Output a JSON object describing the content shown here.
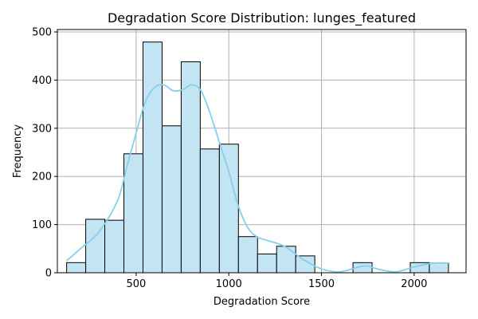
{
  "chart_data": {
    "type": "bar",
    "title": "Degradation Score Distribution: lunges_featured",
    "xlabel": "Degradation Score",
    "ylabel": "Frequency",
    "xlim": [
      75,
      2280
    ],
    "ylim": [
      0,
      505
    ],
    "x_ticks": [
      500,
      1000,
      1500,
      2000
    ],
    "y_ticks": [
      0,
      100,
      200,
      300,
      400,
      500
    ],
    "grid": true,
    "bar_color": "#c3e5f3",
    "bar_edge_color": "#000000",
    "kde_color": "#87ceeb",
    "bins": [
      {
        "start": 125,
        "end": 228,
        "value": 21
      },
      {
        "start": 228,
        "end": 331,
        "value": 111
      },
      {
        "start": 331,
        "end": 434,
        "value": 109
      },
      {
        "start": 434,
        "end": 537,
        "value": 247
      },
      {
        "start": 537,
        "end": 640,
        "value": 479
      },
      {
        "start": 640,
        "end": 743,
        "value": 305
      },
      {
        "start": 743,
        "end": 846,
        "value": 438
      },
      {
        "start": 846,
        "end": 949,
        "value": 257
      },
      {
        "start": 949,
        "end": 1052,
        "value": 267
      },
      {
        "start": 1052,
        "end": 1155,
        "value": 75
      },
      {
        "start": 1155,
        "end": 1258,
        "value": 39
      },
      {
        "start": 1258,
        "end": 1361,
        "value": 55
      },
      {
        "start": 1361,
        "end": 1464,
        "value": 35
      },
      {
        "start": 1464,
        "end": 1567,
        "value": 0
      },
      {
        "start": 1567,
        "end": 1670,
        "value": 0
      },
      {
        "start": 1670,
        "end": 1773,
        "value": 21
      },
      {
        "start": 1773,
        "end": 1876,
        "value": 0
      },
      {
        "start": 1876,
        "end": 1979,
        "value": 0
      },
      {
        "start": 1979,
        "end": 2082,
        "value": 21
      },
      {
        "start": 2082,
        "end": 2185,
        "value": 20
      }
    ],
    "kde": {
      "x": [
        125,
        200,
        300,
        400,
        450,
        500,
        550,
        600,
        650,
        700,
        750,
        800,
        850,
        900,
        950,
        1000,
        1050,
        1100,
        1150,
        1200,
        1300,
        1400,
        1500,
        1600,
        1700,
        1750,
        1800,
        1900,
        2000,
        2100,
        2185
      ],
      "y": [
        25,
        50,
        85,
        150,
        220,
        290,
        355,
        385,
        390,
        378,
        380,
        390,
        378,
        330,
        270,
        210,
        140,
        95,
        75,
        68,
        55,
        28,
        8,
        2,
        12,
        14,
        8,
        2,
        12,
        20,
        20
      ]
    }
  }
}
